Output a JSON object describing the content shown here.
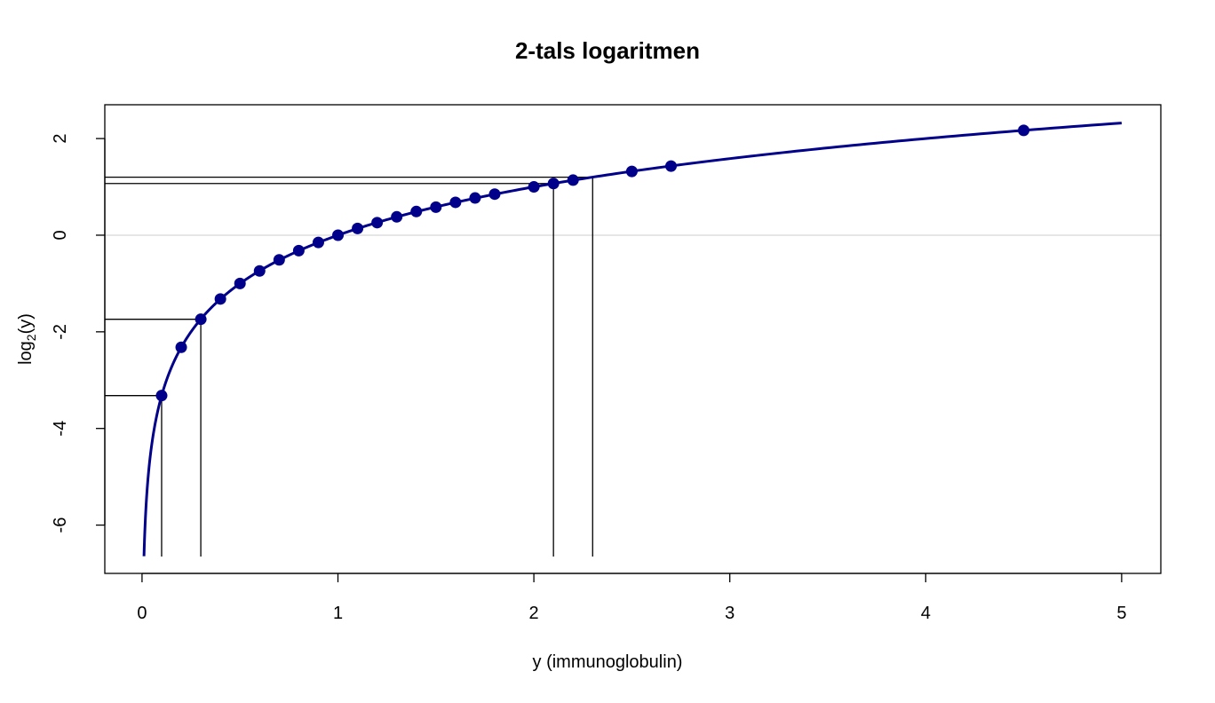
{
  "chart_data": {
    "type": "line",
    "title": "2-tals logaritmen",
    "xlabel": "y (immunoglobulin)",
    "ylabel": {
      "base": "log",
      "sub": "2",
      "rest": "(y)"
    },
    "xlim": [
      -0.19,
      5.2
    ],
    "ylim": [
      -7.0,
      2.7
    ],
    "x_ticks": [
      0,
      1,
      2,
      3,
      4,
      5
    ],
    "y_ticks": [
      -6,
      -4,
      -2,
      0,
      2
    ],
    "curve": {
      "function": "log2(y)",
      "x_range": [
        0.01,
        5.0
      ],
      "color": "#00008B"
    },
    "points_x": [
      0.1,
      0.2,
      0.3,
      0.4,
      0.5,
      0.6,
      0.7,
      0.8,
      0.9,
      1.0,
      1.1,
      1.2,
      1.3,
      1.4,
      1.5,
      1.6,
      1.7,
      1.8,
      2.0,
      2.1,
      2.2,
      2.5,
      2.7,
      4.5
    ],
    "points_y": [
      -3.32,
      -2.32,
      -1.74,
      -1.32,
      -1.0,
      -0.74,
      -0.51,
      -0.32,
      -0.15,
      0.0,
      0.14,
      0.26,
      0.38,
      0.49,
      0.58,
      0.68,
      0.77,
      0.85,
      1.0,
      1.07,
      1.14,
      1.32,
      1.43,
      2.17
    ],
    "reference_x": [
      0.1,
      0.3,
      2.1,
      2.3
    ],
    "reference_y": [
      -3.32,
      -1.74,
      1.07,
      1.2
    ],
    "reference_line_y": 0,
    "grid": false,
    "colors": {
      "series": "#00008B",
      "reference": "#000000",
      "zero_line": "#E6E6E6"
    }
  }
}
